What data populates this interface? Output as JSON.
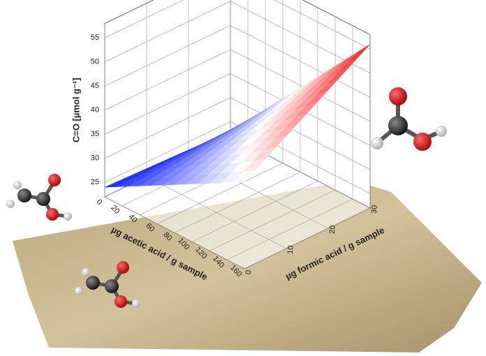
{
  "chart_data": {
    "type": "surface3d",
    "zlabel": "C=O [µmol g⁻¹]",
    "xlabel": "µg acetic acid / g sample",
    "ylabel": "µg formic acid / g sample",
    "x": [
      0,
      160
    ],
    "y": [
      0,
      30
    ],
    "z": [
      [
        24,
        23
      ],
      [
        40,
        56
      ]
    ],
    "xlim": [
      0,
      160
    ],
    "ylim": [
      0,
      30
    ],
    "zlim": [
      22,
      58
    ],
    "xticks": [
      0,
      20,
      40,
      60,
      80,
      100,
      120,
      140,
      160
    ],
    "yticks": [
      0,
      10,
      20,
      30
    ],
    "zticks": [
      25,
      30,
      35,
      40,
      45,
      50,
      55
    ],
    "colormap": [
      "#0a1cff",
      "#ffffff",
      "#ff1a1a"
    ],
    "grid": true
  }
}
